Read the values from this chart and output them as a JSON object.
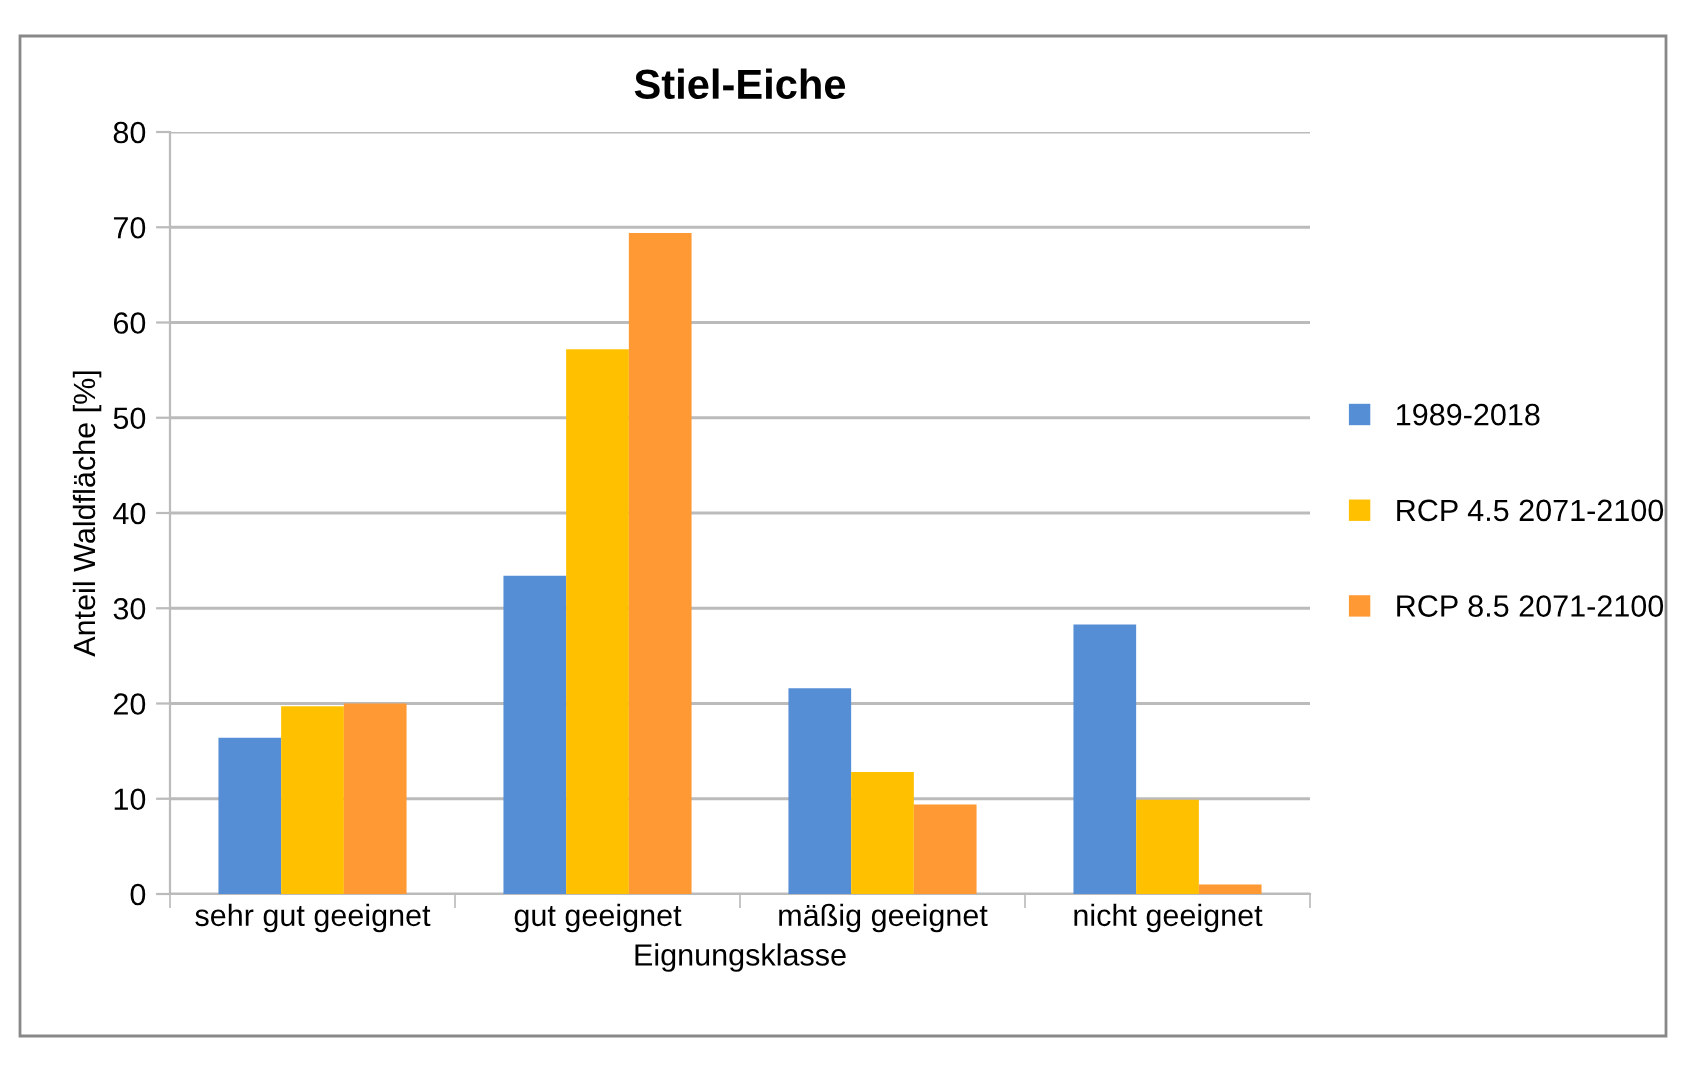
{
  "chart_data": {
    "type": "bar",
    "title": "Stiel-Eiche",
    "xlabel": "Eignungsklasse",
    "ylabel": "Anteil Waldfläche [%]",
    "categories": [
      "sehr gut geeignet",
      "gut geeignet",
      "mäßig geeignet",
      "nicht geeignet"
    ],
    "series": [
      {
        "name": "1989-2018",
        "color": "#558ed5",
        "values": [
          16.4,
          33.4,
          21.6,
          28.3
        ]
      },
      {
        "name": "RCP 4.5 2071-2100",
        "color": "#ffc000",
        "values": [
          19.7,
          57.2,
          12.8,
          9.9
        ]
      },
      {
        "name": "RCP 8.5 2071-2100",
        "color": "#ff9933",
        "values": [
          20.0,
          69.4,
          9.4,
          1.0
        ]
      }
    ],
    "ylim": [
      0,
      80
    ],
    "yticks": [
      0,
      10,
      20,
      30,
      40,
      50,
      60,
      70,
      80
    ],
    "grid": "y",
    "legend": "right"
  }
}
